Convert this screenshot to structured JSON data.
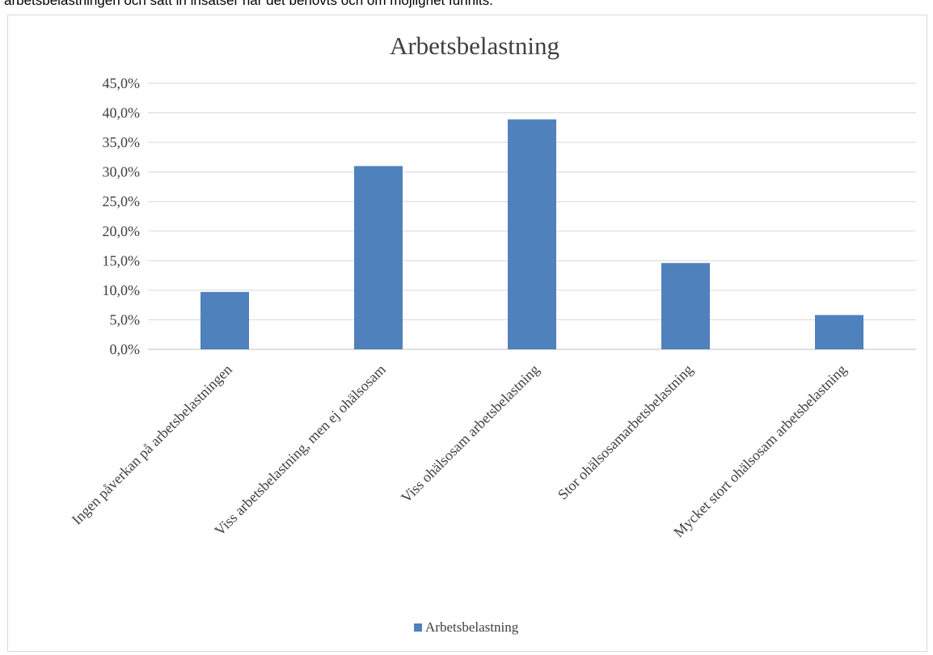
{
  "page": {
    "caption": "arbetsbelastningen och satt in insatser när det behövts och om möjlighet funnits."
  },
  "chart_data": {
    "type": "bar",
    "title": "Arbetsbelastning",
    "xlabel": "",
    "ylabel": "",
    "categories": [
      "Ingen påverkan på arbetsbelastningen",
      "Viss arbetsbelastning, men ej ohälsosam",
      "Viss ohälsosam arbetsbelastning",
      "Stor ohälsosamarbetsbelastning",
      "Mycket stort ohälsosam arbetsbelastning"
    ],
    "series": [
      {
        "name": "Arbetsbelastning",
        "values": [
          9.7,
          31.0,
          38.9,
          14.6,
          5.8
        ],
        "color": "#4f81bd"
      }
    ],
    "ylim": [
      0,
      45
    ],
    "yticks": [
      "0,0%",
      "5,0%",
      "10,0%",
      "15,0%",
      "20,0%",
      "25,0%",
      "30,0%",
      "35,0%",
      "40,0%",
      "45,0%"
    ],
    "unit": "%",
    "grid": true,
    "legend_position": "bottom"
  }
}
